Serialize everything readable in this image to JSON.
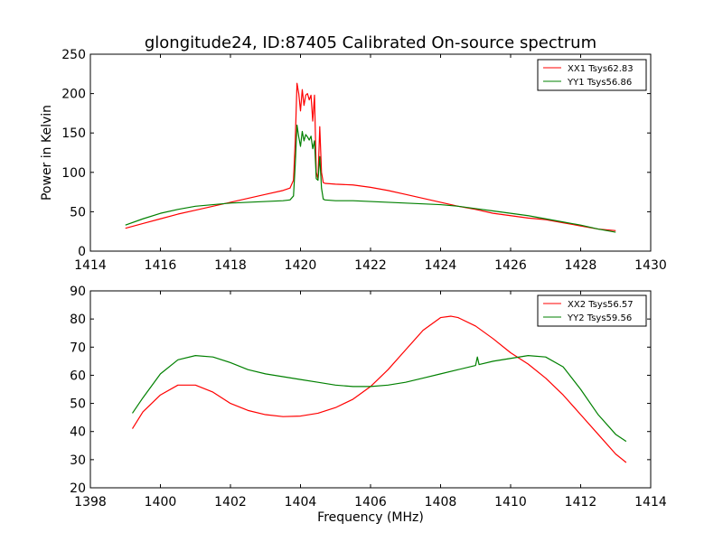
{
  "chart_data": {
    "title": "glongitude24, ID:87405 Calibrated On-source spectrum",
    "charts": [
      {
        "type": "line",
        "xlabel": "",
        "ylabel": "Power in Kelvin",
        "xlim": [
          1414,
          1430
        ],
        "ylim": [
          0,
          250
        ],
        "xticks": [
          1414,
          1416,
          1418,
          1420,
          1422,
          1424,
          1426,
          1428,
          1430
        ],
        "yticks": [
          0,
          50,
          100,
          150,
          200,
          250
        ],
        "grid": false,
        "legend": "top-right",
        "series": [
          {
            "name": "XX1 Tsys62.83",
            "color": "#ff0000",
            "x": [
              1415.0,
              1415.5,
              1416.0,
              1416.5,
              1417.0,
              1417.5,
              1418.0,
              1418.5,
              1419.0,
              1419.5,
              1419.7,
              1419.8,
              1419.85,
              1419.9,
              1419.95,
              1420.0,
              1420.05,
              1420.1,
              1420.15,
              1420.2,
              1420.25,
              1420.3,
              1420.35,
              1420.4,
              1420.45,
              1420.5,
              1420.55,
              1420.6,
              1420.65,
              1420.7,
              1421.0,
              1421.5,
              1422.0,
              1422.5,
              1423.0,
              1423.5,
              1424.0,
              1424.5,
              1425.0,
              1425.5,
              1426.0,
              1426.5,
              1427.0,
              1427.5,
              1428.0,
              1428.5,
              1429.0
            ],
            "values": [
              29,
              35,
              41,
              47,
              52,
              57,
              62,
              67,
              72,
              77,
              80,
              90,
              140,
              213,
              200,
              178,
              205,
              185,
              198,
              200,
              192,
              198,
              165,
              198,
              100,
              92,
              158,
              100,
              87,
              86,
              85,
              84,
              81,
              77,
              72,
              67,
              62,
              57,
              53,
              48,
              45,
              42,
              40,
              36,
              32,
              28,
              26
            ]
          },
          {
            "name": "YY1 Tsys56.86",
            "color": "#008000",
            "x": [
              1415.0,
              1415.5,
              1416.0,
              1416.5,
              1417.0,
              1417.5,
              1418.0,
              1418.5,
              1419.0,
              1419.5,
              1419.7,
              1419.8,
              1419.85,
              1419.9,
              1419.95,
              1420.0,
              1420.05,
              1420.1,
              1420.15,
              1420.2,
              1420.25,
              1420.3,
              1420.35,
              1420.4,
              1420.45,
              1420.5,
              1420.55,
              1420.6,
              1420.65,
              1420.7,
              1421.0,
              1421.5,
              1422.0,
              1422.5,
              1423.0,
              1423.5,
              1424.0,
              1424.5,
              1425.0,
              1425.5,
              1426.0,
              1426.5,
              1427.0,
              1427.5,
              1428.0,
              1428.5,
              1429.0
            ],
            "values": [
              33,
              41,
              48,
              53,
              57,
              59,
              61,
              62,
              63,
              64,
              65,
              70,
              110,
              160,
              145,
              133,
              152,
              140,
              148,
              145,
              141,
              146,
              130,
              140,
              92,
              90,
              120,
              80,
              66,
              65,
              64,
              64,
              63,
              62,
              61,
              60,
              59,
              57,
              54,
              51,
              48,
              45,
              41,
              37,
              33,
              28,
              24
            ]
          }
        ]
      },
      {
        "type": "line",
        "xlabel": "Frequency (MHz)",
        "ylabel": "",
        "xlim": [
          1398,
          1414
        ],
        "ylim": [
          20,
          90
        ],
        "xticks": [
          1398,
          1400,
          1402,
          1404,
          1406,
          1408,
          1410,
          1412,
          1414
        ],
        "yticks": [
          20,
          30,
          40,
          50,
          60,
          70,
          80,
          90
        ],
        "grid": false,
        "legend": "top-right",
        "series": [
          {
            "name": "XX2 Tsys56.57",
            "color": "#ff0000",
            "x": [
              1399.2,
              1399.5,
              1400.0,
              1400.5,
              1401.0,
              1401.5,
              1402.0,
              1402.5,
              1403.0,
              1403.5,
              1404.0,
              1404.5,
              1405.0,
              1405.5,
              1406.0,
              1406.5,
              1407.0,
              1407.5,
              1408.0,
              1408.3,
              1408.5,
              1409.0,
              1409.5,
              1410.0,
              1410.5,
              1411.0,
              1411.5,
              1412.0,
              1412.5,
              1413.0,
              1413.3
            ],
            "values": [
              41,
              47,
              53,
              56.5,
              56.5,
              54,
              50,
              47.5,
              46,
              45.3,
              45.5,
              46.5,
              48.5,
              51.5,
              56,
              62,
              69,
              76,
              80.5,
              81,
              80.5,
              77.5,
              73,
              68,
              64,
              59,
              53,
              46,
              39,
              32,
              29
            ]
          },
          {
            "name": "YY2 Tsys59.56",
            "color": "#008000",
            "x": [
              1399.2,
              1399.5,
              1400.0,
              1400.5,
              1401.0,
              1401.5,
              1402.0,
              1402.5,
              1403.0,
              1403.5,
              1404.0,
              1404.5,
              1405.0,
              1405.5,
              1406.0,
              1406.5,
              1407.0,
              1407.5,
              1408.0,
              1408.5,
              1409.0,
              1409.05,
              1409.1,
              1409.5,
              1410.0,
              1410.5,
              1411.0,
              1411.5,
              1412.0,
              1412.5,
              1413.0,
              1413.3
            ],
            "values": [
              46.5,
              52,
              60.5,
              65.5,
              67,
              66.5,
              64.5,
              62,
              60.5,
              59.5,
              58.5,
              57.5,
              56.5,
              56,
              56,
              56.5,
              57.5,
              59,
              60.5,
              62,
              63.5,
              66.5,
              63.8,
              65,
              66,
              67,
              66.5,
              63,
              55,
              46,
              39,
              36.5
            ]
          }
        ]
      }
    ]
  }
}
